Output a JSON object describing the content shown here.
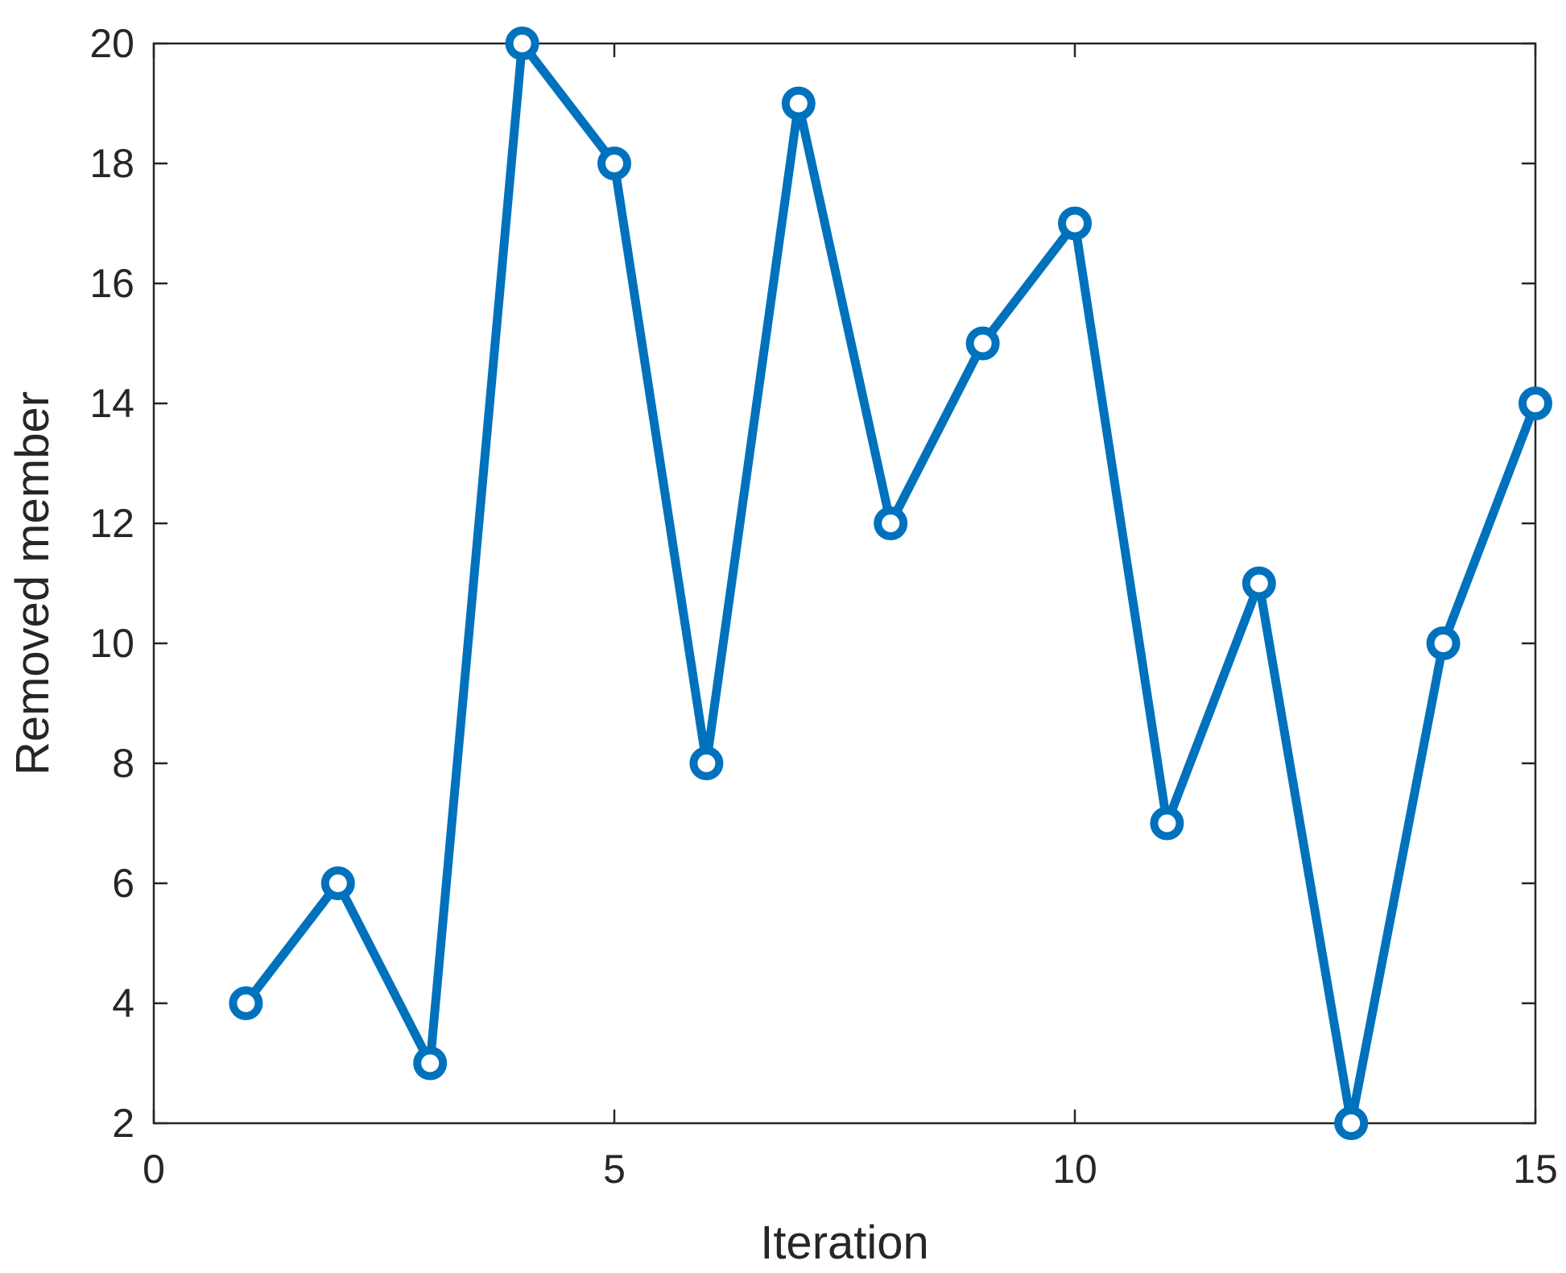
{
  "chart_data": {
    "type": "line",
    "title": "",
    "xlabel": "Iteration",
    "ylabel": "Removed member",
    "xlim": [
      0,
      15
    ],
    "ylim": [
      2,
      20
    ],
    "xticks": [
      0,
      5,
      10,
      15
    ],
    "yticks": [
      2,
      4,
      6,
      8,
      10,
      12,
      14,
      16,
      18,
      20
    ],
    "grid": false,
    "legend": "none",
    "box": true,
    "marker": "circle",
    "series": [
      {
        "color": "#0072BD",
        "x": [
          1,
          2,
          3,
          4,
          5,
          6,
          7,
          8,
          9,
          10,
          11,
          12,
          13,
          14,
          15
        ],
        "y": [
          4,
          6,
          3,
          20,
          18,
          8,
          19,
          12,
          15,
          17,
          7,
          11,
          2,
          10,
          14
        ]
      }
    ]
  }
}
